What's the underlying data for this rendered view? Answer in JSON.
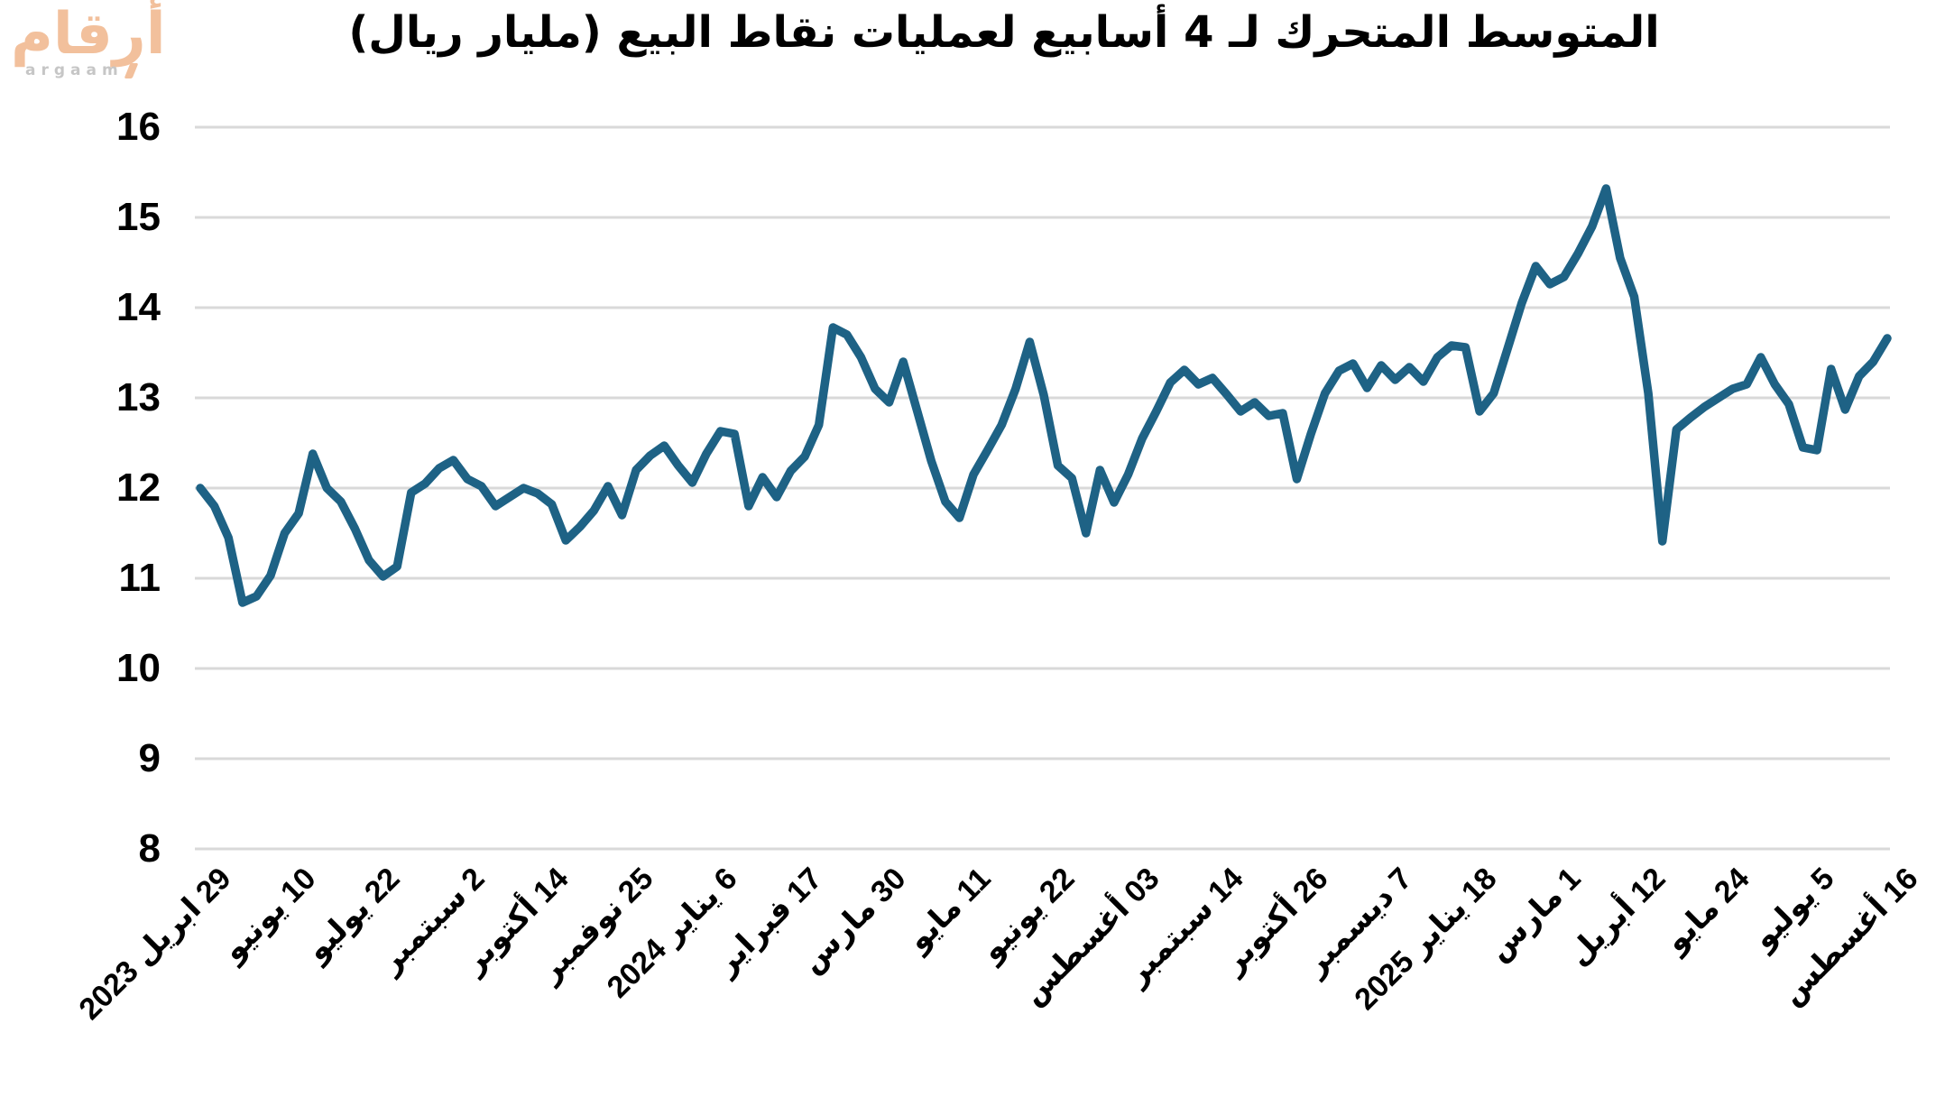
{
  "logo": {
    "arabic": "أرقام",
    "latin": "argaam",
    "brand_color": "#f2c09c",
    "latin_color": "#c6c6c6"
  },
  "chart_data": {
    "type": "line",
    "title": "المتوسط المتحرك لـ 4 أسابيع لعمليات نقاط البيع (مليار ريال)",
    "xlabel": "",
    "ylabel": "",
    "ylim": [
      8,
      16
    ],
    "y_ticks": [
      8,
      9,
      10,
      11,
      12,
      13,
      14,
      15,
      16
    ],
    "grid": true,
    "legend": "none",
    "line_color": "#1e6285",
    "grid_color": "#d9d9d9",
    "x_tick_every": 6,
    "x_tick_labels": [
      "29 ابريل 2023",
      "10 يونيو",
      "22 يوليو",
      "2 سبتمبر",
      "14 أكتوبر",
      "25 نوفمبر",
      "6 يناير 2024",
      "17 فبراير",
      "30 مارس",
      "11 مايو",
      "22 يونيو",
      "03 أغسطس",
      "14 سبتمبر",
      "26 أكتوبر",
      "7 ديسمبر",
      "18 يناير 2025",
      "1 مارس",
      "12 أبريل",
      "24 مايو",
      "5 يوليو",
      "16 أغسطس"
    ],
    "values": [
      12.0,
      11.8,
      11.45,
      10.73,
      10.8,
      11.03,
      11.5,
      11.72,
      12.38,
      12.0,
      11.85,
      11.55,
      11.2,
      11.02,
      11.13,
      11.95,
      12.05,
      12.22,
      12.31,
      12.1,
      12.02,
      11.8,
      11.9,
      12.0,
      11.94,
      11.82,
      11.42,
      11.57,
      11.75,
      12.02,
      11.7,
      12.2,
      12.36,
      12.47,
      12.25,
      12.06,
      12.38,
      12.63,
      12.6,
      11.8,
      12.12,
      11.9,
      12.19,
      12.35,
      12.7,
      13.78,
      13.7,
      13.45,
      13.1,
      12.95,
      13.4,
      12.85,
      12.3,
      11.85,
      11.67,
      12.15,
      12.42,
      12.7,
      13.1,
      13.62,
      13.03,
      12.25,
      12.11,
      11.5,
      12.2,
      11.84,
      12.15,
      12.55,
      12.85,
      13.17,
      13.31,
      13.15,
      13.22,
      13.04,
      12.85,
      12.95,
      12.8,
      12.83,
      12.1,
      12.6,
      13.05,
      13.3,
      13.38,
      13.11,
      13.36,
      13.2,
      13.34,
      13.18,
      13.45,
      13.58,
      13.56,
      12.85,
      13.05,
      13.55,
      14.05,
      14.46,
      14.26,
      14.34,
      14.6,
      14.9,
      15.32,
      14.55,
      14.12,
      13.05,
      11.41,
      12.65,
      12.78,
      12.9,
      13.0,
      13.1,
      13.15,
      13.45,
      13.15,
      12.93,
      12.45,
      12.42,
      13.32,
      12.87,
      13.24,
      13.4,
      13.66
    ]
  }
}
